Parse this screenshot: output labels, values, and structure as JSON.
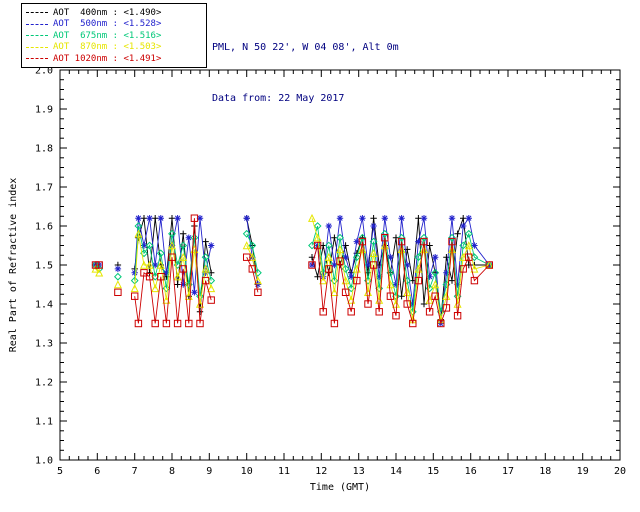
{
  "header": {
    "line1": "PML, N 50 22', W 04 08', Alt 0m",
    "line2": "Data from: 22 May 2017",
    "text_color": "#000080"
  },
  "chart_data": {
    "type": "line",
    "title": "",
    "xlabel": "Time (GMT)",
    "ylabel": "Real Part of Refractive index",
    "xlim": [
      5,
      20
    ],
    "ylim": [
      1.0,
      2.0
    ],
    "xtick_step": 1,
    "ytick_step": 0.1,
    "grid": false,
    "legend_position": "top-left",
    "gap_threshold": 0.45,
    "background": "#ffffff",
    "axis_color": "#000000",
    "x": [
      5.95,
      6.05,
      6.55,
      7.0,
      7.1,
      7.25,
      7.4,
      7.55,
      7.7,
      7.85,
      8.0,
      8.15,
      8.3,
      8.45,
      8.6,
      8.75,
      8.9,
      9.05,
      10.0,
      10.15,
      10.3,
      11.75,
      11.9,
      12.05,
      12.2,
      12.35,
      12.5,
      12.65,
      12.8,
      12.95,
      13.1,
      13.25,
      13.4,
      13.55,
      13.7,
      13.85,
      14.0,
      14.15,
      14.3,
      14.45,
      14.6,
      14.75,
      14.9,
      15.05,
      15.2,
      15.35,
      15.5,
      15.65,
      15.8,
      15.95,
      16.1,
      16.5
    ],
    "series": [
      {
        "name": "AOT 400nm",
        "wavelength_nm": 400,
        "mean_refractive_index": "<1.490>",
        "legend_label": "AOT  400nm : <1.490>",
        "color": "#000000",
        "marker": "plus",
        "values": [
          1.5,
          1.5,
          1.5,
          1.49,
          1.57,
          1.62,
          1.48,
          1.62,
          1.5,
          1.47,
          1.62,
          1.45,
          1.58,
          1.42,
          1.6,
          1.38,
          1.56,
          1.48,
          1.62,
          1.55,
          1.45,
          1.52,
          1.47,
          1.55,
          1.48,
          1.57,
          1.5,
          1.55,
          1.48,
          1.53,
          1.57,
          1.48,
          1.62,
          1.5,
          1.55,
          1.48,
          1.57,
          1.42,
          1.54,
          1.46,
          1.62,
          1.4,
          1.55,
          1.48,
          1.36,
          1.52,
          1.46,
          1.58,
          1.62,
          1.5,
          1.5,
          1.5
        ]
      },
      {
        "name": "AOT 500nm",
        "wavelength_nm": 500,
        "mean_refractive_index": "<1.528>",
        "legend_label": "AOT  500nm : <1.528>",
        "color": "#2222cc",
        "marker": "asterisk",
        "values": [
          1.5,
          1.5,
          1.49,
          1.48,
          1.62,
          1.55,
          1.62,
          1.5,
          1.62,
          1.48,
          1.55,
          1.62,
          1.45,
          1.57,
          1.43,
          1.62,
          1.48,
          1.55,
          1.62,
          1.52,
          1.45,
          1.5,
          1.55,
          1.47,
          1.6,
          1.5,
          1.62,
          1.52,
          1.47,
          1.56,
          1.62,
          1.5,
          1.6,
          1.47,
          1.62,
          1.52,
          1.45,
          1.62,
          1.5,
          1.4,
          1.56,
          1.62,
          1.47,
          1.52,
          1.35,
          1.48,
          1.62,
          1.45,
          1.6,
          1.62,
          1.55,
          1.5
        ]
      },
      {
        "name": "AOT 675nm",
        "wavelength_nm": 675,
        "mean_refractive_index": "<1.516>",
        "legend_label": "AOT  675nm : <1.516>",
        "color": "#00c878",
        "marker": "diamond",
        "values": [
          1.5,
          1.49,
          1.47,
          1.46,
          1.6,
          1.53,
          1.55,
          1.47,
          1.53,
          1.44,
          1.58,
          1.5,
          1.55,
          1.45,
          1.57,
          1.42,
          1.52,
          1.46,
          1.58,
          1.55,
          1.48,
          1.55,
          1.6,
          1.48,
          1.55,
          1.46,
          1.57,
          1.49,
          1.44,
          1.52,
          1.57,
          1.46,
          1.56,
          1.44,
          1.58,
          1.48,
          1.42,
          1.57,
          1.46,
          1.38,
          1.52,
          1.57,
          1.44,
          1.48,
          1.38,
          1.45,
          1.57,
          1.42,
          1.55,
          1.58,
          1.52,
          1.5
        ]
      },
      {
        "name": "AOT 870nm",
        "wavelength_nm": 870,
        "mean_refractive_index": "<1.503>",
        "legend_label": "AOT  870nm : <1.503>",
        "color": "#e6e600",
        "marker": "triangle",
        "values": [
          1.49,
          1.48,
          1.45,
          1.44,
          1.58,
          1.5,
          1.5,
          1.44,
          1.5,
          1.41,
          1.55,
          1.47,
          1.52,
          1.42,
          1.54,
          1.4,
          1.49,
          1.44,
          1.55,
          1.52,
          1.46,
          1.62,
          1.57,
          1.46,
          1.52,
          1.43,
          1.54,
          1.46,
          1.41,
          1.49,
          1.54,
          1.43,
          1.53,
          1.41,
          1.55,
          1.45,
          1.4,
          1.54,
          1.43,
          1.36,
          1.49,
          1.54,
          1.41,
          1.45,
          1.36,
          1.42,
          1.54,
          1.4,
          1.52,
          1.55,
          1.49,
          1.5
        ]
      },
      {
        "name": "AOT 1020nm",
        "wavelength_nm": 1020,
        "mean_refractive_index": "<1.491>",
        "legend_label": "AOT 1020nm : <1.491>",
        "color": "#cc0000",
        "marker": "square",
        "values": [
          1.5,
          1.5,
          1.43,
          1.42,
          1.35,
          1.48,
          1.47,
          1.35,
          1.47,
          1.35,
          1.52,
          1.35,
          1.49,
          1.35,
          1.62,
          1.35,
          1.46,
          1.41,
          1.52,
          1.49,
          1.43,
          1.5,
          1.55,
          1.38,
          1.49,
          1.35,
          1.51,
          1.43,
          1.38,
          1.46,
          1.56,
          1.4,
          1.5,
          1.38,
          1.57,
          1.42,
          1.37,
          1.56,
          1.4,
          1.35,
          1.46,
          1.56,
          1.38,
          1.42,
          1.35,
          1.39,
          1.56,
          1.37,
          1.49,
          1.52,
          1.46,
          1.5
        ]
      }
    ]
  }
}
